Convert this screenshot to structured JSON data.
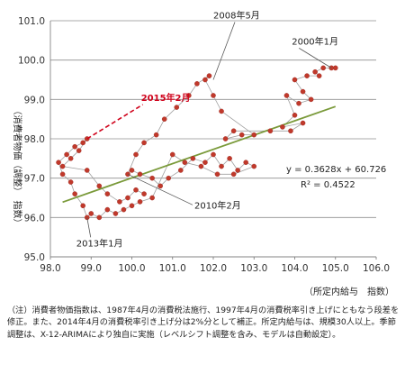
{
  "chart_data": {
    "type": "scatter",
    "xlabel": "（所定内給与　指数）",
    "ylabel": "（消費者物価（調整）　指数）",
    "xlim": [
      98.0,
      106.0
    ],
    "ylim": [
      95.0,
      101.0
    ],
    "x_ticks": [
      "98.0",
      "99.0",
      "100.0",
      "101.0",
      "102.0",
      "103.0",
      "104.0",
      "105.0",
      "106.0"
    ],
    "y_ticks": [
      "95.0",
      "96.0",
      "97.0",
      "98.0",
      "99.0",
      "100.0",
      "101.0"
    ],
    "grid": "horizontal",
    "colors": {
      "points": "#c0392b",
      "path": "#a0a0a0",
      "trend": "#7a9a3a",
      "highlight": "#d0021b"
    },
    "trendline": {
      "slope": 0.3628,
      "intercept": 60.726,
      "x_range": [
        98.3,
        105.0
      ],
      "equation": "y = 0.3628x + 60.726",
      "r2": "R² = 0.4522"
    },
    "points": [
      {
        "x": 104.9,
        "y": 99.8
      },
      {
        "x": 105.0,
        "y": 99.8
      },
      {
        "x": 104.7,
        "y": 99.8
      },
      {
        "x": 104.5,
        "y": 99.7
      },
      {
        "x": 104.6,
        "y": 99.6
      },
      {
        "x": 104.3,
        "y": 99.6
      },
      {
        "x": 104.0,
        "y": 99.5
      },
      {
        "x": 104.2,
        "y": 99.2
      },
      {
        "x": 104.4,
        "y": 99.0
      },
      {
        "x": 104.1,
        "y": 98.9
      },
      {
        "x": 103.8,
        "y": 99.1
      },
      {
        "x": 104.0,
        "y": 98.6
      },
      {
        "x": 103.7,
        "y": 98.3
      },
      {
        "x": 104.2,
        "y": 98.4
      },
      {
        "x": 103.9,
        "y": 98.2
      },
      {
        "x": 103.4,
        "y": 98.2
      },
      {
        "x": 102.5,
        "y": 98.2
      },
      {
        "x": 102.3,
        "y": 98.0
      },
      {
        "x": 102.7,
        "y": 98.1
      },
      {
        "x": 103.0,
        "y": 98.1
      },
      {
        "x": 102.2,
        "y": 98.7
      },
      {
        "x": 102.0,
        "y": 99.1
      },
      {
        "x": 101.8,
        "y": 99.5
      },
      {
        "x": 101.9,
        "y": 99.6
      },
      {
        "x": 101.6,
        "y": 99.4
      },
      {
        "x": 101.4,
        "y": 99.1
      },
      {
        "x": 101.1,
        "y": 98.8
      },
      {
        "x": 100.8,
        "y": 98.5
      },
      {
        "x": 100.6,
        "y": 98.1
      },
      {
        "x": 100.3,
        "y": 97.9
      },
      {
        "x": 100.1,
        "y": 97.6
      },
      {
        "x": 99.9,
        "y": 97.1
      },
      {
        "x": 100.0,
        "y": 97.2
      },
      {
        "x": 100.2,
        "y": 97.1
      },
      {
        "x": 100.5,
        "y": 97.0
      },
      {
        "x": 100.7,
        "y": 96.8
      },
      {
        "x": 100.9,
        "y": 97.0
      },
      {
        "x": 101.2,
        "y": 97.2
      },
      {
        "x": 101.5,
        "y": 97.5
      },
      {
        "x": 101.8,
        "y": 97.4
      },
      {
        "x": 102.0,
        "y": 97.6
      },
      {
        "x": 102.2,
        "y": 97.3
      },
      {
        "x": 102.4,
        "y": 97.5
      },
      {
        "x": 102.6,
        "y": 97.2
      },
      {
        "x": 102.8,
        "y": 97.4
      },
      {
        "x": 103.0,
        "y": 97.3
      },
      {
        "x": 102.5,
        "y": 97.1
      },
      {
        "x": 102.1,
        "y": 97.1
      },
      {
        "x": 101.7,
        "y": 97.3
      },
      {
        "x": 101.3,
        "y": 97.4
      },
      {
        "x": 101.0,
        "y": 97.6
      },
      {
        "x": 100.5,
        "y": 96.5
      },
      {
        "x": 100.2,
        "y": 96.4
      },
      {
        "x": 100.0,
        "y": 96.3
      },
      {
        "x": 99.8,
        "y": 96.2
      },
      {
        "x": 99.6,
        "y": 96.1
      },
      {
        "x": 99.4,
        "y": 96.2
      },
      {
        "x": 99.2,
        "y": 96.0
      },
      {
        "x": 99.0,
        "y": 96.1
      },
      {
        "x": 98.9,
        "y": 96.0
      },
      {
        "x": 98.8,
        "y": 96.3
      },
      {
        "x": 98.6,
        "y": 96.6
      },
      {
        "x": 98.5,
        "y": 96.9
      },
      {
        "x": 98.3,
        "y": 97.1
      },
      {
        "x": 98.2,
        "y": 97.4
      },
      {
        "x": 98.4,
        "y": 97.6
      },
      {
        "x": 98.6,
        "y": 97.8
      },
      {
        "x": 98.8,
        "y": 97.9
      },
      {
        "x": 98.9,
        "y": 98.0
      },
      {
        "x": 98.7,
        "y": 97.7
      },
      {
        "x": 98.5,
        "y": 97.5
      },
      {
        "x": 98.3,
        "y": 97.3
      },
      {
        "x": 98.9,
        "y": 97.2
      },
      {
        "x": 99.2,
        "y": 96.8
      },
      {
        "x": 99.4,
        "y": 96.6
      },
      {
        "x": 99.7,
        "y": 96.4
      },
      {
        "x": 99.9,
        "y": 96.5
      },
      {
        "x": 100.1,
        "y": 96.7
      },
      {
        "x": 100.3,
        "y": 96.6
      }
    ],
    "annotations": [
      {
        "text": "2000年1月",
        "x": 104.9,
        "y": 99.8
      },
      {
        "text": "2008年5月",
        "x": 102.0,
        "y": 99.5
      },
      {
        "text": "2015年2月",
        "x": 98.9,
        "y": 98.0,
        "style": "highlight"
      },
      {
        "text": "2010年2月",
        "x": 99.9,
        "y": 97.1
      },
      {
        "text": "2013年1月",
        "x": 98.9,
        "y": 96.0
      }
    ]
  },
  "note": {
    "text": "（注）消費者物価指数は、1987年4月の消費税法施行、1997年4月の消費税率引き上げにともなう段差を修正。また、2014年4月の消費税率引き上げ分は2%分として補正。所定内給与は、規模30人以上。季節調整は、X-12-ARIMAにより独自に実施（レベルシフト調整を含み、モデルは自動設定）。"
  }
}
